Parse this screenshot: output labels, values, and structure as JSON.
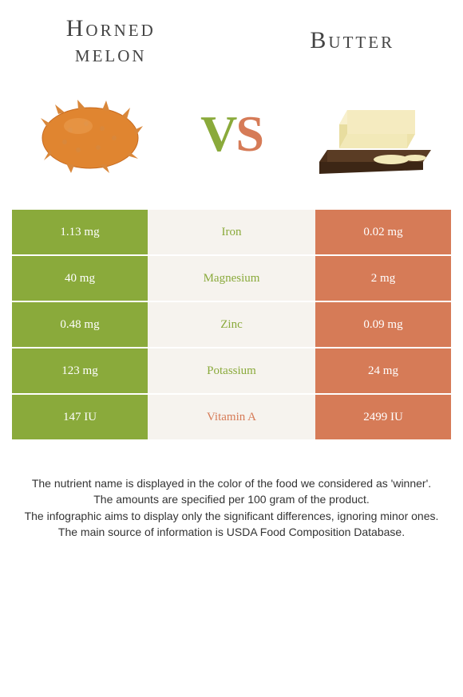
{
  "titles": {
    "left_line1": "Horned",
    "left_line2": "melon",
    "right": "Butter"
  },
  "vs": {
    "v": "V",
    "s": "S"
  },
  "colors": {
    "left": "#8aaa3b",
    "right": "#d67b57",
    "mid_bg": "#f6f3ee",
    "row_gap": "#ffffff"
  },
  "rows": [
    {
      "left": "1.13 mg",
      "label": "Iron",
      "right": "0.02 mg",
      "winner": "left"
    },
    {
      "left": "40 mg",
      "label": "Magnesium",
      "right": "2 mg",
      "winner": "left"
    },
    {
      "left": "0.48 mg",
      "label": "Zinc",
      "right": "0.09 mg",
      "winner": "left"
    },
    {
      "left": "123 mg",
      "label": "Potassium",
      "right": "24 mg",
      "winner": "left"
    },
    {
      "left": "147 IU",
      "label": "Vitamin A",
      "right": "2499 IU",
      "winner": "right"
    }
  ],
  "footer": {
    "line1": "The nutrient name is displayed in the color of the food we considered as 'winner'.",
    "line2": "The amounts are specified per 100 gram of the product.",
    "line3": "The infographic aims to display only the significant differences, ignoring minor ones.",
    "line4": "The main source of information is USDA Food Composition Database."
  }
}
